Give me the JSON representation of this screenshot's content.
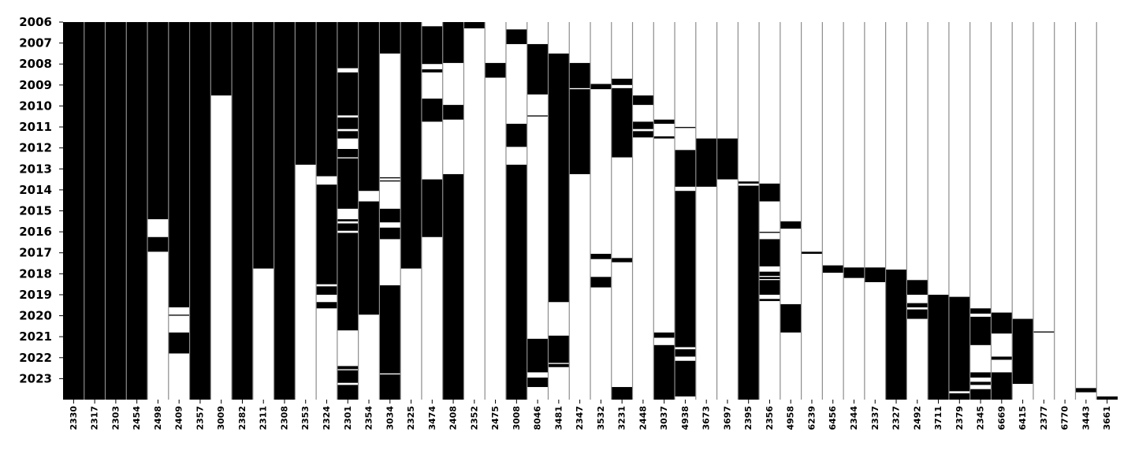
{
  "chart_data": {
    "type": "heatmap",
    "title": "",
    "xlabel": "",
    "ylabel": "",
    "grid": false,
    "legend": "none",
    "colors": {
      "on": "#000000",
      "off": "#ffffff",
      "separator": "#8c8c8c"
    },
    "y_ticks": [
      "2006",
      "2007",
      "2008",
      "2009",
      "2010",
      "2011",
      "2012",
      "2013",
      "2014",
      "2015",
      "2016",
      "2017",
      "2018",
      "2019",
      "2020",
      "2021",
      "2022",
      "2023"
    ],
    "y_range": [
      2006,
      2024
    ],
    "columns": [
      {
        "label": "2330",
        "segments": [
          [
            2006,
            2024
          ]
        ]
      },
      {
        "label": "2317",
        "segments": [
          [
            2006,
            2024
          ]
        ]
      },
      {
        "label": "2303",
        "segments": [
          [
            2006,
            2024
          ]
        ]
      },
      {
        "label": "2454",
        "segments": [
          [
            2006,
            2024
          ]
        ]
      },
      {
        "label": "2498",
        "segments": [
          [
            2006,
            2015.4
          ],
          [
            2016.25,
            2016.95
          ]
        ]
      },
      {
        "label": "2409",
        "segments": [
          [
            2006,
            2019.6
          ],
          [
            2019.95,
            2020.0
          ],
          [
            2020.8,
            2021.8
          ]
        ]
      },
      {
        "label": "2357",
        "segments": [
          [
            2006,
            2024
          ]
        ]
      },
      {
        "label": "3009",
        "segments": [
          [
            2006,
            2009.5
          ]
        ]
      },
      {
        "label": "2382",
        "segments": [
          [
            2006,
            2024
          ]
        ]
      },
      {
        "label": "2311",
        "segments": [
          [
            2006,
            2017.75
          ]
        ]
      },
      {
        "label": "2308",
        "segments": [
          [
            2006,
            2024
          ]
        ]
      },
      {
        "label": "2353",
        "segments": [
          [
            2006,
            2012.8
          ]
        ]
      },
      {
        "label": "2324",
        "segments": [
          [
            2006,
            2013.35
          ],
          [
            2013.75,
            2018.5
          ],
          [
            2018.6,
            2019.0
          ],
          [
            2019.35,
            2019.65
          ]
        ]
      },
      {
        "label": "2301",
        "segments": [
          [
            2006,
            2008.2
          ],
          [
            2008.4,
            2010.45
          ],
          [
            2010.55,
            2011.1
          ],
          [
            2011.2,
            2011.55
          ],
          [
            2012.05,
            2012.45
          ],
          [
            2012.5,
            2014.9
          ],
          [
            2015.4,
            2015.5
          ],
          [
            2015.6,
            2015.95
          ],
          [
            2016.05,
            2020.7
          ],
          [
            2022.4,
            2022.55
          ],
          [
            2022.6,
            2023.2
          ],
          [
            2023.3,
            2024
          ]
        ]
      },
      {
        "label": "2354",
        "segments": [
          [
            2006,
            2014.05
          ],
          [
            2014.55,
            2019.95
          ]
        ]
      },
      {
        "label": "3034",
        "segments": [
          [
            2006,
            2007.5
          ],
          [
            2013.4,
            2013.45
          ],
          [
            2013.55,
            2013.6
          ],
          [
            2014.9,
            2015.55
          ],
          [
            2015.8,
            2016.35
          ],
          [
            2018.55,
            2022.75
          ],
          [
            2022.8,
            2024
          ]
        ]
      },
      {
        "label": "2325",
        "segments": [
          [
            2006,
            2017.75
          ]
        ]
      },
      {
        "label": "3474",
        "segments": [
          [
            2006.2,
            2008.0
          ],
          [
            2008.25,
            2008.4
          ],
          [
            2009.65,
            2010.75
          ],
          [
            2013.5,
            2016.25
          ]
        ]
      },
      {
        "label": "2408",
        "segments": [
          [
            2006,
            2007.95
          ],
          [
            2009.95,
            2010.65
          ],
          [
            2013.25,
            2024
          ]
        ]
      },
      {
        "label": "2352",
        "segments": [
          [
            2006,
            2006.3
          ]
        ]
      },
      {
        "label": "2475",
        "segments": [
          [
            2007.95,
            2008.65
          ]
        ]
      },
      {
        "label": "3008",
        "segments": [
          [
            2006.35,
            2007.05
          ],
          [
            2010.85,
            2011.95
          ],
          [
            2012.8,
            2024
          ]
        ]
      },
      {
        "label": "8046",
        "segments": [
          [
            2007.05,
            2009.45
          ],
          [
            2010.45,
            2010.5
          ],
          [
            2021.1,
            2022.7
          ],
          [
            2022.95,
            2023.4
          ]
        ]
      },
      {
        "label": "3481",
        "segments": [
          [
            2007.5,
            2019.35
          ],
          [
            2020.95,
            2022.25
          ],
          [
            2022.3,
            2022.45
          ]
        ]
      },
      {
        "label": "2347",
        "segments": [
          [
            2007.95,
            2009.15
          ],
          [
            2009.2,
            2013.25
          ]
        ]
      },
      {
        "label": "3532",
        "segments": [
          [
            2008.95,
            2009.2
          ],
          [
            2017.05,
            2017.3
          ],
          [
            2018.15,
            2018.65
          ]
        ]
      },
      {
        "label": "3231",
        "segments": [
          [
            2008.7,
            2009.0
          ],
          [
            2009.15,
            2012.45
          ],
          [
            2017.25,
            2017.45
          ],
          [
            2023.4,
            2024
          ]
        ]
      },
      {
        "label": "2448",
        "segments": [
          [
            2009.5,
            2009.95
          ],
          [
            2010.75,
            2011.1
          ],
          [
            2011.2,
            2011.5
          ]
        ]
      },
      {
        "label": "3037",
        "segments": [
          [
            2010.65,
            2010.85
          ],
          [
            2011.45,
            2011.55
          ],
          [
            2020.8,
            2021.05
          ],
          [
            2021.4,
            2024
          ]
        ]
      },
      {
        "label": "4938",
        "segments": [
          [
            2011.0,
            2011.05
          ],
          [
            2012.1,
            2013.85
          ],
          [
            2014.05,
            2021.5
          ],
          [
            2021.6,
            2021.95
          ],
          [
            2022.15,
            2023.85
          ]
        ]
      },
      {
        "label": "3673",
        "segments": [
          [
            2011.55,
            2013.85
          ]
        ]
      },
      {
        "label": "3697",
        "segments": [
          [
            2011.55,
            2013.5
          ]
        ]
      },
      {
        "label": "2395",
        "segments": [
          [
            2013.6,
            2013.7
          ],
          [
            2013.8,
            2024
          ]
        ]
      },
      {
        "label": "2356",
        "segments": [
          [
            2013.7,
            2014.55
          ],
          [
            2016.0,
            2016.05
          ],
          [
            2016.35,
            2017.65
          ],
          [
            2017.9,
            2018.1
          ],
          [
            2018.15,
            2018.25
          ],
          [
            2018.3,
            2019.0
          ],
          [
            2019.2,
            2019.3
          ]
        ]
      },
      {
        "label": "4958",
        "segments": [
          [
            2015.5,
            2015.85
          ],
          [
            2019.45,
            2020.8
          ]
        ]
      },
      {
        "label": "6239",
        "segments": [
          [
            2016.95,
            2017.05
          ]
        ]
      },
      {
        "label": "6456",
        "segments": [
          [
            2017.6,
            2017.95
          ]
        ]
      },
      {
        "label": "2344",
        "segments": [
          [
            2017.7,
            2018.2
          ]
        ]
      },
      {
        "label": "2337",
        "segments": [
          [
            2017.7,
            2018.4
          ]
        ]
      },
      {
        "label": "2327",
        "segments": [
          [
            2017.8,
            2024
          ]
        ]
      },
      {
        "label": "2492",
        "segments": [
          [
            2018.3,
            2019.0
          ],
          [
            2019.4,
            2019.6
          ],
          [
            2019.7,
            2020.15
          ]
        ]
      },
      {
        "label": "3711",
        "segments": [
          [
            2019.0,
            2024
          ]
        ]
      },
      {
        "label": "2379",
        "segments": [
          [
            2019.1,
            2023.6
          ],
          [
            2023.7,
            2024
          ]
        ]
      },
      {
        "label": "2345",
        "segments": [
          [
            2019.65,
            2019.9
          ],
          [
            2020.05,
            2021.4
          ],
          [
            2022.7,
            2022.95
          ],
          [
            2023.15,
            2023.3
          ],
          [
            2023.5,
            2024
          ]
        ]
      },
      {
        "label": "6669",
        "segments": [
          [
            2019.85,
            2020.85
          ],
          [
            2021.95,
            2022.1
          ],
          [
            2022.7,
            2024
          ]
        ]
      },
      {
        "label": "6415",
        "segments": [
          [
            2020.15,
            2023.25
          ]
        ]
      },
      {
        "label": "2377",
        "segments": [
          [
            2020.75,
            2020.8
          ]
        ]
      },
      {
        "label": "6770",
        "segments": []
      },
      {
        "label": "3443",
        "segments": [
          [
            2023.45,
            2023.65
          ]
        ]
      },
      {
        "label": "3661",
        "segments": [
          [
            2023.85,
            2024
          ]
        ]
      }
    ]
  }
}
